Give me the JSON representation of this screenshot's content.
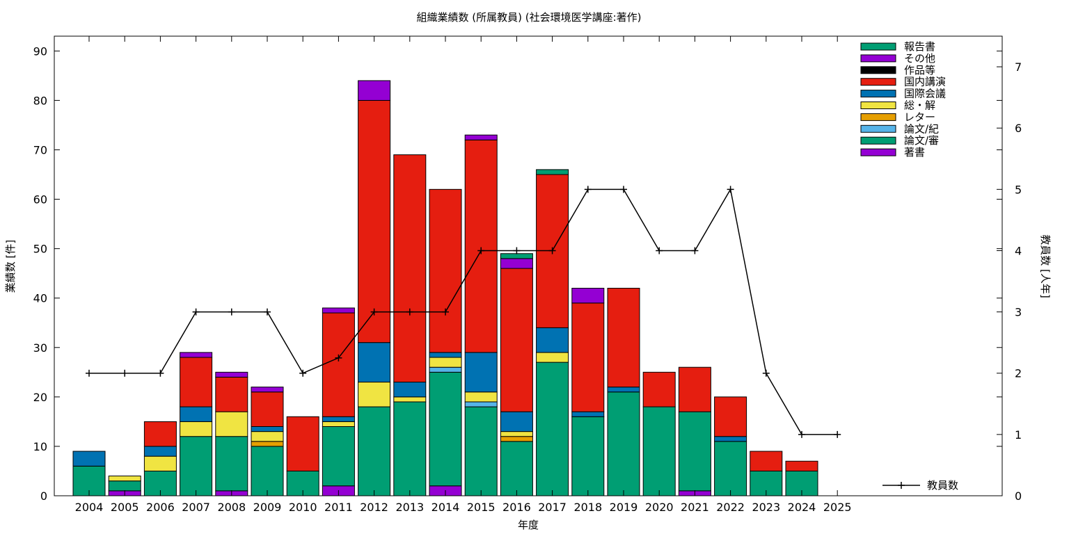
{
  "chart_data": {
    "type": "bar",
    "stacked": true,
    "title": "組織業績数 (所属教員) (社会環境医学講座:著作)",
    "xlabel": "年度",
    "ylabel": "業績数 [件]",
    "y2label": "教員数 [人年]",
    "ylim": [
      0,
      93
    ],
    "y2lim": [
      0,
      7.5
    ],
    "yticks": [
      0,
      10,
      20,
      30,
      40,
      50,
      60,
      70,
      80,
      90
    ],
    "y2ticks": [
      0,
      1,
      2,
      3,
      4,
      5,
      6,
      7
    ],
    "grid": false,
    "legend_position": "top-right",
    "categories": [
      "2004",
      "2005",
      "2006",
      "2007",
      "2008",
      "2009",
      "2010",
      "2011",
      "2012",
      "2013",
      "2014",
      "2015",
      "2016",
      "2017",
      "2018",
      "2019",
      "2020",
      "2021",
      "2022",
      "2023",
      "2024",
      "2025"
    ],
    "series": [
      {
        "name": "著書",
        "color": "#9400d3",
        "values": [
          0,
          1,
          0,
          0,
          1,
          0,
          0,
          2,
          0,
          0,
          2,
          0,
          0,
          0,
          0,
          0,
          0,
          1,
          0,
          0,
          0,
          0
        ]
      },
      {
        "name": "論文/審",
        "color": "#009e73",
        "values": [
          6,
          2,
          5,
          12,
          11,
          10,
          5,
          12,
          18,
          19,
          23,
          18,
          11,
          27,
          16,
          21,
          18,
          16,
          11,
          5,
          5,
          0
        ]
      },
      {
        "name": "論文/紀",
        "color": "#56b4e9",
        "values": [
          0,
          0,
          0,
          0,
          0,
          0,
          0,
          0,
          0,
          0,
          1,
          1,
          0,
          0,
          0,
          0,
          0,
          0,
          0,
          0,
          0,
          0
        ]
      },
      {
        "name": "レター",
        "color": "#e69f00",
        "values": [
          0,
          0,
          0,
          0,
          0,
          1,
          0,
          0,
          0,
          0,
          0,
          0,
          1,
          0,
          0,
          0,
          0,
          0,
          0,
          0,
          0,
          0
        ]
      },
      {
        "name": "総・解",
        "color": "#f0e442",
        "values": [
          0,
          1,
          3,
          3,
          5,
          2,
          0,
          1,
          5,
          1,
          2,
          2,
          1,
          2,
          0,
          0,
          0,
          0,
          0,
          0,
          0,
          0
        ]
      },
      {
        "name": "国際会議",
        "color": "#0072b2",
        "values": [
          3,
          0,
          2,
          3,
          0,
          1,
          0,
          1,
          8,
          3,
          1,
          8,
          4,
          5,
          1,
          1,
          0,
          0,
          1,
          0,
          0,
          0
        ]
      },
      {
        "name": "国内講演",
        "color": "#e51e10",
        "values": [
          0,
          0,
          5,
          10,
          7,
          7,
          11,
          21,
          49,
          46,
          33,
          43,
          29,
          31,
          22,
          20,
          7,
          9,
          8,
          4,
          2,
          0
        ]
      },
      {
        "name": "作品等",
        "color": "#000000",
        "values": [
          0,
          0,
          0,
          0,
          0,
          0,
          0,
          0,
          0,
          0,
          0,
          0,
          0,
          0,
          0,
          0,
          0,
          0,
          0,
          0,
          0,
          0
        ]
      },
      {
        "name": "その他",
        "color": "#9400d3",
        "values": [
          0,
          0,
          0,
          1,
          1,
          1,
          0,
          1,
          4,
          0,
          0,
          1,
          2,
          0,
          3,
          0,
          0,
          0,
          0,
          0,
          0,
          0
        ]
      },
      {
        "name": "報告書",
        "color": "#009e73",
        "values": [
          0,
          0,
          0,
          0,
          0,
          0,
          0,
          0,
          0,
          0,
          0,
          0,
          1,
          1,
          0,
          0,
          0,
          0,
          0,
          0,
          0,
          0
        ]
      }
    ],
    "legend_order": [
      "報告書",
      "その他",
      "作品等",
      "国内講演",
      "国際会議",
      "総・解",
      "レター",
      "論文/紀",
      "論文/審",
      "著書"
    ],
    "line_series": {
      "name": "教員数",
      "color": "#000000",
      "axis": "y2",
      "values": [
        2,
        2,
        2,
        3,
        3,
        3,
        2,
        2.25,
        3,
        3,
        3,
        4,
        4,
        4,
        5,
        5,
        4,
        4,
        5,
        2,
        1,
        1
      ]
    }
  }
}
